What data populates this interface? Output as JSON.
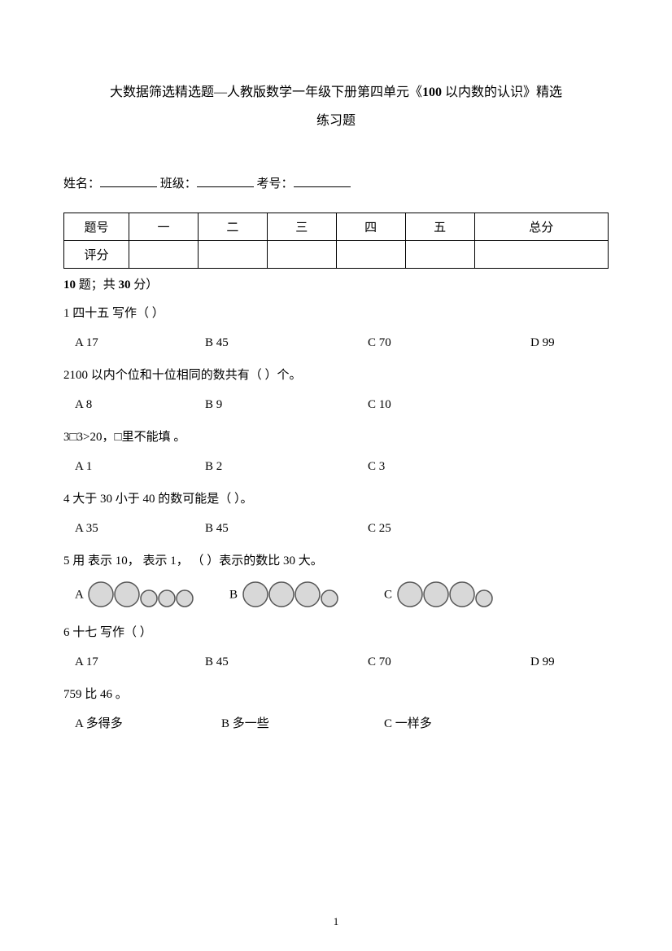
{
  "title": {
    "line1_prefix": "大数据筛选精选题—人教版数学一年级下册第四单元《",
    "line1_bold": "100",
    "line1_suffix": " 以内数的认识》精选",
    "line2": "练习题"
  },
  "info": {
    "name_label": "姓名：",
    "class_label": " 班级：",
    "exam_no_label": "考号："
  },
  "score_table": {
    "row1": [
      "题号",
      "一",
      "二",
      "三",
      "四",
      "五",
      "总分"
    ],
    "row2_label": "评分"
  },
  "section_note": {
    "bold1": "10",
    "mid": " 题；共 ",
    "bold2": "30",
    "suffix": " 分）"
  },
  "q1": {
    "text": "1 四十五  写作（  ）",
    "A": "A 17",
    "B": "B 45",
    "C": "C 70",
    "D": "D 99"
  },
  "q2": {
    "text": "2100 以内个位和十位相同的数共有（   ）个。",
    "A": "A 8",
    "B": "B 9",
    "C": "C 10"
  },
  "q3": {
    "text": "3□3>20，□里不能填    。",
    "A": "A 1",
    "B": "B 2",
    "C": "C 3"
  },
  "q4": {
    "text": "4 大于 30 小于 40 的数可能是（   ）。",
    "A": "A 35",
    "B": "B 45",
    "C": "C 25"
  },
  "q5": {
    "text": "5 用  表示 10，  表示 1， （    ）表示的数比 30 大。",
    "A_label": "A",
    "B_label": "B",
    "C_label": "C",
    "A_circles": [
      1,
      1,
      0,
      0,
      0
    ],
    "B_circles": [
      1,
      1,
      1,
      0
    ],
    "C_circles": [
      1,
      1,
      1,
      0
    ],
    "big_r": 15,
    "small_r": 10,
    "fill": "#d8d8d8",
    "stroke": "#555555",
    "stroke_w": 1.5
  },
  "q6": {
    "text": "6 十七  写作（  ）",
    "A": "A 17",
    "B": "B 45",
    "C": "C 70",
    "D": "D 99"
  },
  "q7": {
    "text": "759 比 46    。",
    "A": "A 多得多",
    "B": "B 多一些",
    "C": "C 一样多"
  },
  "page_number": "1"
}
